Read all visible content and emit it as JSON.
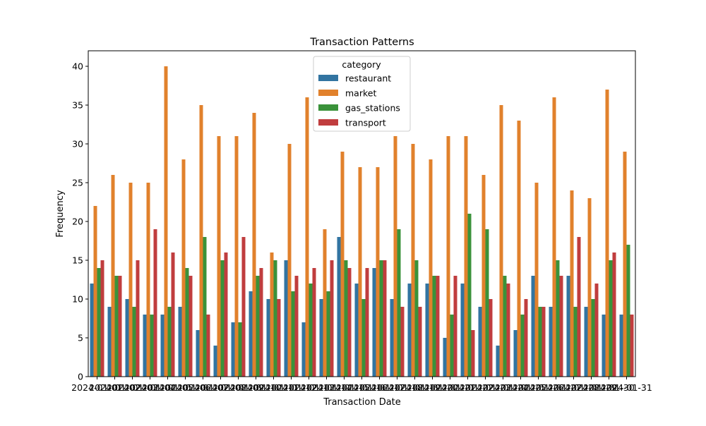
{
  "chart_data": {
    "type": "bar",
    "title": "Transaction Patterns",
    "xlabel": "Transaction Date",
    "ylabel": "Frequency",
    "ylim": [
      0,
      42
    ],
    "yticks": [
      0,
      5,
      10,
      15,
      20,
      25,
      30,
      35,
      40
    ],
    "grid": false,
    "legend": {
      "title": "category",
      "placement": "top-center"
    },
    "categories": [
      "2024-01-01",
      "2024-01-02",
      "2024-01-03",
      "2024-01-04",
      "2024-01-05",
      "2024-01-06",
      "2024-01-07",
      "2024-01-08",
      "2024-01-09",
      "2024-01-10",
      "2024-01-11",
      "2024-01-12",
      "2024-01-13",
      "2024-01-14",
      "2024-01-15",
      "2024-01-16",
      "2024-01-17",
      "2024-01-18",
      "2024-01-19",
      "2024-01-20",
      "2024-01-21",
      "2024-01-22",
      "2024-01-23",
      "2024-01-24",
      "2024-01-25",
      "2024-01-26",
      "2024-01-27",
      "2024-01-28",
      "2024-01-29",
      "2024-01-30",
      "2024-01-31"
    ],
    "series": [
      {
        "name": "restaurant",
        "color": "#3274a1",
        "values": [
          12,
          9,
          10,
          8,
          8,
          9,
          6,
          4,
          7,
          11,
          10,
          15,
          7,
          10,
          18,
          12,
          14,
          10,
          12,
          12,
          5,
          12,
          9,
          4,
          6,
          13,
          9,
          13,
          9,
          8,
          8
        ]
      },
      {
        "name": "market",
        "color": "#e1812c",
        "values": [
          22,
          26,
          25,
          25,
          40,
          28,
          35,
          31,
          31,
          34,
          16,
          30,
          36,
          19,
          29,
          27,
          27,
          31,
          30,
          28,
          31,
          31,
          26,
          35,
          33,
          25,
          36,
          24,
          23,
          37,
          29
        ]
      },
      {
        "name": "gas_stations",
        "color": "#3a923a",
        "values": [
          14,
          13,
          9,
          8,
          9,
          14,
          18,
          15,
          7,
          13,
          15,
          11,
          12,
          11,
          15,
          10,
          15,
          19,
          15,
          13,
          8,
          21,
          19,
          13,
          8,
          9,
          15,
          9,
          10,
          15,
          17
        ]
      },
      {
        "name": "transport",
        "color": "#c03d3e",
        "values": [
          15,
          13,
          15,
          19,
          16,
          13,
          8,
          16,
          18,
          14,
          10,
          13,
          14,
          15,
          14,
          14,
          15,
          9,
          9,
          13,
          13,
          6,
          10,
          12,
          10,
          9,
          13,
          18,
          12,
          16,
          8
        ]
      }
    ]
  }
}
